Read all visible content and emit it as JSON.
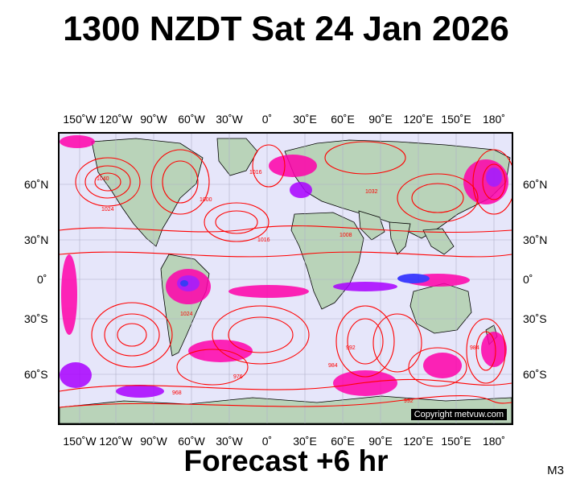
{
  "title": "1300 NZDT Sat 24 Jan 2026",
  "footer": "Forecast +6 hr",
  "model_tag": "M3",
  "copyright": "Copyright metvuw.com",
  "lon_labels": [
    "150˚W",
    "120˚W",
    "90˚W",
    "60˚W",
    "30˚W",
    "0˚",
    "30˚E",
    "60˚E",
    "90˚E",
    "120˚E",
    "150˚E",
    "180˚"
  ],
  "lat_labels": [
    "60˚N",
    "30˚N",
    "0˚",
    "30˚S",
    "60˚S"
  ],
  "pressure_labels": [
    "1040",
    "1024",
    "1016",
    "1000",
    "1008",
    "1032",
    "992",
    "984",
    "976",
    "968"
  ],
  "colors": {
    "ocean": "#e6e6fa",
    "land": "#b9d3b9",
    "isobar": "#ff0000",
    "rain_light": "#ff00aa",
    "rain_heavy": "#aa00ff",
    "rain_blue": "#2222ff"
  }
}
